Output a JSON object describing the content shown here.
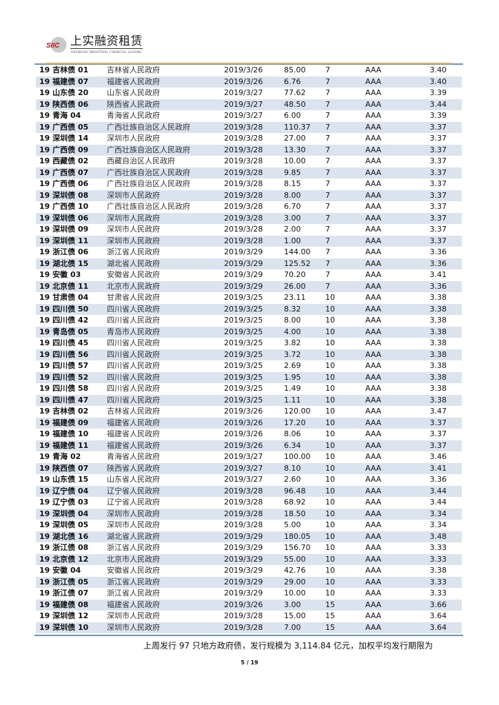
{
  "header": {
    "logo_text": "SIIC",
    "company_name": "上实融资租赁",
    "company_name_en": "SHANGHAI INDUSTRIAL FINANCIAL LEASING"
  },
  "table": {
    "rows": [
      [
        "19 吉林债 01",
        "吉林省人民政府",
        "2019/3/26",
        "85.00",
        "7",
        "AAA",
        "3.40"
      ],
      [
        "19 福建债 07",
        "福建省人民政府",
        "2019/3/26",
        "6.76",
        "7",
        "AAA",
        "3.40"
      ],
      [
        "19 山东债 20",
        "山东省人民政府",
        "2019/3/27",
        "77.62",
        "7",
        "AAA",
        "3.39"
      ],
      [
        "19 陕西债 06",
        "陕西省人民政府",
        "2019/3/27",
        "48.50",
        "7",
        "AAA",
        "3.44"
      ],
      [
        "19 青海 04",
        "青海省人民政府",
        "2019/3/27",
        "6.00",
        "7",
        "AAA",
        "3.39"
      ],
      [
        "19 广西债 05",
        "广西壮族自治区人民政府",
        "2019/3/28",
        "110.37",
        "7",
        "AAA",
        "3.37"
      ],
      [
        "19 深圳债 14",
        "深圳市人民政府",
        "2019/3/28",
        "27.00",
        "7",
        "AAA",
        "3.37"
      ],
      [
        "19 广西债 09",
        "广西壮族自治区人民政府",
        "2019/3/28",
        "13.30",
        "7",
        "AAA",
        "3.37"
      ],
      [
        "19 西藏债 02",
        "西藏自治区人民政府",
        "2019/3/28",
        "10.00",
        "7",
        "AAA",
        "3.37"
      ],
      [
        "19 广西债 07",
        "广西壮族自治区人民政府",
        "2019/3/28",
        "9.85",
        "7",
        "AAA",
        "3.37"
      ],
      [
        "19 广西债 06",
        "广西壮族自治区人民政府",
        "2019/3/28",
        "8.15",
        "7",
        "AAA",
        "3.37"
      ],
      [
        "19 深圳债 08",
        "深圳市人民政府",
        "2019/3/28",
        "8.00",
        "7",
        "AAA",
        "3.37"
      ],
      [
        "19 广西债 10",
        "广西壮族自治区人民政府",
        "2019/3/28",
        "6.70",
        "7",
        "AAA",
        "3.37"
      ],
      [
        "19 深圳债 06",
        "深圳市人民政府",
        "2019/3/28",
        "3.00",
        "7",
        "AAA",
        "3.37"
      ],
      [
        "19 深圳债 09",
        "深圳市人民政府",
        "2019/3/28",
        "2.00",
        "7",
        "AAA",
        "3.37"
      ],
      [
        "19 深圳债 11",
        "深圳市人民政府",
        "2019/3/28",
        "1.00",
        "7",
        "AAA",
        "3.37"
      ],
      [
        "19 浙江债 06",
        "浙江省人民政府",
        "2019/3/29",
        "144.00",
        "7",
        "AAA",
        "3.36"
      ],
      [
        "19 湖北债 15",
        "湖北省人民政府",
        "2019/3/29",
        "125.52",
        "7",
        "AAA",
        "3.36"
      ],
      [
        "19 安徽 03",
        "安徽省人民政府",
        "2019/3/29",
        "70.20",
        "7",
        "AAA",
        "3.41"
      ],
      [
        "19 北京债 11",
        "北京市人民政府",
        "2019/3/29",
        "26.00",
        "7",
        "AAA",
        "3.36"
      ],
      [
        "19 甘肃债 04",
        "甘肃省人民政府",
        "2019/3/25",
        "23.11",
        "10",
        "AAA",
        "3.38"
      ],
      [
        "19 四川债 50",
        "四川省人民政府",
        "2019/3/25",
        "8.32",
        "10",
        "AAA",
        "3.38"
      ],
      [
        "19 四川债 42",
        "四川省人民政府",
        "2019/3/25",
        "8.00",
        "10",
        "AAA",
        "3.38"
      ],
      [
        "19 青岛债 05",
        "青岛市人民政府",
        "2019/3/25",
        "4.00",
        "10",
        "AAA",
        "3.38"
      ],
      [
        "19 四川债 45",
        "四川省人民政府",
        "2019/3/25",
        "3.82",
        "10",
        "AAA",
        "3.38"
      ],
      [
        "19 四川债 56",
        "四川省人民政府",
        "2019/3/25",
        "3.72",
        "10",
        "AAA",
        "3.38"
      ],
      [
        "19 四川债 57",
        "四川省人民政府",
        "2019/3/25",
        "2.69",
        "10",
        "AAA",
        "3.38"
      ],
      [
        "19 四川债 52",
        "四川省人民政府",
        "2019/3/25",
        "1.95",
        "10",
        "AAA",
        "3.38"
      ],
      [
        "19 四川债 58",
        "四川省人民政府",
        "2019/3/25",
        "1.49",
        "10",
        "AAA",
        "3.38"
      ],
      [
        "19 四川债 47",
        "四川省人民政府",
        "2019/3/25",
        "1.11",
        "10",
        "AAA",
        "3.38"
      ],
      [
        "19 吉林债 02",
        "吉林省人民政府",
        "2019/3/26",
        "120.00",
        "10",
        "AAA",
        "3.47"
      ],
      [
        "19 福建债 09",
        "福建省人民政府",
        "2019/3/26",
        "17.20",
        "10",
        "AAA",
        "3.37"
      ],
      [
        "19 福建债 10",
        "福建省人民政府",
        "2019/3/26",
        "8.06",
        "10",
        "AAA",
        "3.37"
      ],
      [
        "19 福建债 11",
        "福建省人民政府",
        "2019/3/26",
        "6.34",
        "10",
        "AAA",
        "3.37"
      ],
      [
        "19 青海 02",
        "青海省人民政府",
        "2019/3/27",
        "100.00",
        "10",
        "AAA",
        "3.46"
      ],
      [
        "19 陕西债 07",
        "陕西省人民政府",
        "2019/3/27",
        "8.10",
        "10",
        "AAA",
        "3.41"
      ],
      [
        "19 山东债 15",
        "山东省人民政府",
        "2019/3/27",
        "2.60",
        "10",
        "AAA",
        "3.36"
      ],
      [
        "19 辽宁债 04",
        "辽宁省人民政府",
        "2019/3/28",
        "96.48",
        "10",
        "AAA",
        "3.44"
      ],
      [
        "19 辽宁债 03",
        "辽宁省人民政府",
        "2019/3/28",
        "68.92",
        "10",
        "AAA",
        "3.44"
      ],
      [
        "19 深圳债 04",
        "深圳市人民政府",
        "2019/3/28",
        "18.50",
        "10",
        "AAA",
        "3.34"
      ],
      [
        "19 深圳债 05",
        "深圳市人民政府",
        "2019/3/28",
        "5.00",
        "10",
        "AAA",
        "3.34"
      ],
      [
        "19 湖北债 16",
        "湖北省人民政府",
        "2019/3/29",
        "180.05",
        "10",
        "AAA",
        "3.48"
      ],
      [
        "19 浙江债 08",
        "浙江省人民政府",
        "2019/3/29",
        "156.70",
        "10",
        "AAA",
        "3.33"
      ],
      [
        "19 北京债 12",
        "北京市人民政府",
        "2019/3/29",
        "55.00",
        "10",
        "AAA",
        "3.33"
      ],
      [
        "19 安徽 04",
        "安徽省人民政府",
        "2019/3/29",
        "42.76",
        "10",
        "AAA",
        "3.38"
      ],
      [
        "19 浙江债 05",
        "浙江省人民政府",
        "2019/3/29",
        "29.00",
        "10",
        "AAA",
        "3.33"
      ],
      [
        "19 浙江债 07",
        "浙江省人民政府",
        "2019/3/29",
        "10.00",
        "10",
        "AAA",
        "3.33"
      ],
      [
        "19 福建债 08",
        "福建省人民政府",
        "2019/3/26",
        "3.00",
        "15",
        "AAA",
        "3.66"
      ],
      [
        "19 深圳债 12",
        "深圳市人民政府",
        "2019/3/28",
        "15.00",
        "15",
        "AAA",
        "3.64"
      ],
      [
        "19 深圳债 10",
        "深圳市人民政府",
        "2019/3/28",
        "7.00",
        "15",
        "AAA",
        "3.64"
      ]
    ]
  },
  "paragraph": "上周发行 97 只地方政府债，发行规模为 3,114.84 亿元，加权平均发行期限为",
  "footer": {
    "page": "5 / 19"
  },
  "colors": {
    "stripe": "#dbe3ef",
    "rule_blue": "#6f8fc0",
    "rule_gold": "#e5b74a",
    "logo_red": "#c0141c"
  }
}
